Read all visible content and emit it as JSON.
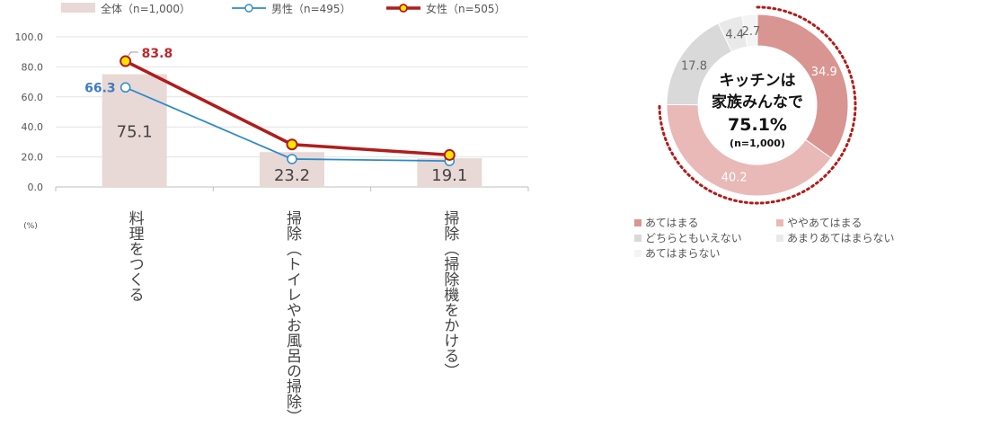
{
  "chart_data": [
    {
      "type": "bar",
      "unit_label": "(%)",
      "ylim": [
        0,
        100
      ],
      "y_ticks": [
        "0.0",
        "20.0",
        "40.0",
        "60.0",
        "80.0",
        "100.0"
      ],
      "grid": true,
      "legend_position": "top",
      "categories": [
        "料理をつくる",
        "掃除（トイレやお風呂の掃除）",
        "掃除（掃除機をかける）"
      ],
      "series": [
        {
          "name": "全体（n=1,000）",
          "kind": "bar",
          "color": "#e8d9d6",
          "values": [
            75.1,
            23.2,
            19.1
          ],
          "labels": [
            "75.1",
            "23.2",
            "19.1"
          ]
        },
        {
          "name": "男性（n=495）",
          "kind": "line",
          "color": "#2e8bc9",
          "values": [
            66.3,
            18.6,
            17.3
          ],
          "labels": [
            "66.3",
            "",
            ""
          ]
        },
        {
          "name": "女性（n=505）",
          "kind": "line",
          "color": "#b01c1c",
          "values": [
            83.8,
            28.3,
            21.3
          ],
          "labels": [
            "83.8",
            "",
            ""
          ]
        }
      ]
    },
    {
      "type": "pie",
      "center_text": [
        "キッチンは",
        "家族みんなで",
        "75.1%",
        "(n=1,000)"
      ],
      "slices": [
        {
          "label": "あてはまる",
          "value": 34.9,
          "display": "34.9",
          "color": "#d99591"
        },
        {
          "label": "ややあてはまる",
          "value": 40.2,
          "display": "40.2",
          "color": "#e9b9b7"
        },
        {
          "label": "どちらともいえない",
          "value": 17.8,
          "display": "17.8",
          "color": "#d9d9d9"
        },
        {
          "label": "あまりあてはまらない",
          "value": 4.4,
          "display": "4.4",
          "color": "#e9e9e9"
        },
        {
          "label": "あてはまらない",
          "value": 2.7,
          "display": "2.7",
          "color": "#f4f4f4"
        }
      ],
      "highlight_color": "#b01c1c",
      "legend_position": "bottom"
    }
  ]
}
